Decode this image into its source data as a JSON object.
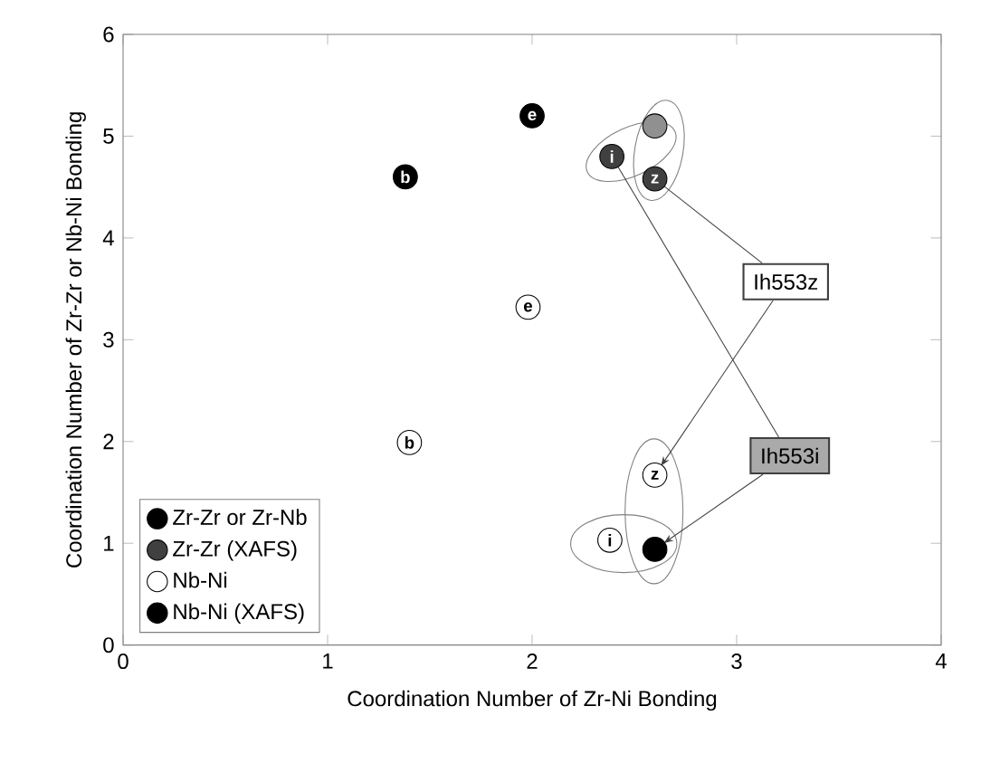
{
  "chart_data": {
    "type": "scatter",
    "xlabel": "Coordination Number of Zr-Ni Bonding",
    "ylabel": "Coordination Number of Zr-Zr or Nb-Ni Bonding",
    "xlim": [
      0,
      4
    ],
    "ylim": [
      0,
      6
    ],
    "xticks": [
      0,
      1,
      2,
      3,
      4
    ],
    "yticks": [
      0,
      1,
      2,
      3,
      4,
      5,
      6
    ],
    "grid": false,
    "legend": "bottom left",
    "series": [
      {
        "name": "Zr-Zr or Zr-Nb",
        "color": "#000000",
        "x": [
          1.38,
          2.0
        ],
        "values": [
          4.6,
          5.2
        ]
      },
      {
        "name": "Zr-Zr (XAFS)",
        "color": "#404040",
        "colors": [
          "#404040",
          "#404040",
          "#909090"
        ],
        "x": [
          2.39,
          2.6,
          2.6
        ],
        "values": [
          4.8,
          4.58,
          5.1
        ]
      },
      {
        "name": "Nb-Ni",
        "color": "#ffffff",
        "x": [
          1.4,
          1.98,
          2.6,
          2.38
        ],
        "values": [
          1.99,
          3.32,
          1.67,
          1.03
        ]
      },
      {
        "name": "Nb-Ni (XAFS)",
        "color": "#000000",
        "x": [
          2.6
        ],
        "values": [
          0.94
        ]
      }
    ],
    "annotations": [
      {
        "text": "b",
        "x": 1.38,
        "y": 4.6
      },
      {
        "text": "e",
        "x": 2.0,
        "y": 5.2
      },
      {
        "text": "i",
        "x": 2.39,
        "y": 4.8
      },
      {
        "text": "z",
        "x": 2.6,
        "y": 4.58
      },
      {
        "text": "b",
        "x": 1.4,
        "y": 1.99
      },
      {
        "text": "e",
        "x": 1.98,
        "y": 3.32
      },
      {
        "text": "z",
        "x": 2.6,
        "y": 1.67
      },
      {
        "text": "i",
        "x": 2.38,
        "y": 1.03
      },
      {
        "text": "Ih553z",
        "x": 2.6,
        "y": 4.58
      },
      {
        "text": "Ih553i",
        "x": 2.39,
        "y": 4.8
      }
    ]
  }
}
